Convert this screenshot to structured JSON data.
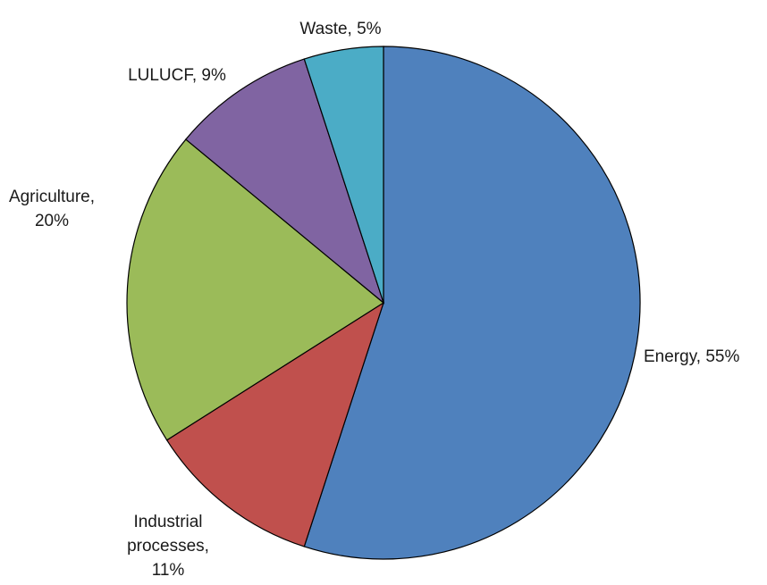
{
  "chart_data": {
    "type": "pie",
    "title": "",
    "start_angle_deg": 0,
    "direction": "clockwise",
    "slices": [
      {
        "category": "Energy",
        "value": 55,
        "color": "#4F81BD",
        "label_lines": [
          "Energy, 55%"
        ]
      },
      {
        "category": "Industrial processes",
        "value": 11,
        "color": "#C0504D",
        "label_lines": [
          "Industrial",
          "processes,",
          "11%"
        ]
      },
      {
        "category": "Agriculture",
        "value": 20,
        "color": "#9BBB59",
        "label_lines": [
          "Agriculture,",
          "20%"
        ]
      },
      {
        "category": "LULUCF",
        "value": 9,
        "color": "#8064A2",
        "label_lines": [
          "LULUCF, 9%"
        ]
      },
      {
        "category": "Waste",
        "value": 5,
        "color": "#4BACC6",
        "label_lines": [
          "Waste, 5%"
        ]
      }
    ]
  }
}
